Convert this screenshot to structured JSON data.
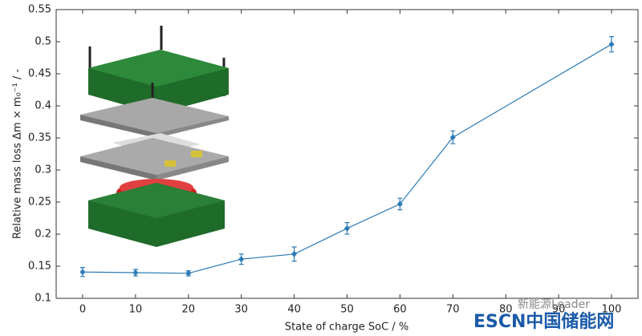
{
  "chart_data": {
    "type": "errorbar-line",
    "x_label": "State of charge SoC / %",
    "y_label": "Relative mass loss Δm × m₀⁻¹ / -",
    "x": [
      0,
      10,
      20,
      30,
      40,
      50,
      60,
      70,
      100
    ],
    "series": [
      {
        "color": "#2c7bb6",
        "values": [
          0.141,
          0.14,
          0.139,
          0.161,
          0.169,
          0.209,
          0.247,
          0.351,
          0.496
        ],
        "errors": [
          0.007,
          0.005,
          0.004,
          0.008,
          0.011,
          0.009,
          0.009,
          0.01,
          0.012
        ]
      }
    ],
    "xlim": [
      -5,
      105
    ],
    "ylim": [
      0.1,
      0.55
    ],
    "xticks": [
      0,
      10,
      20,
      30,
      40,
      50,
      60,
      70,
      80,
      90,
      100
    ],
    "yticks": [
      0.1,
      0.15,
      0.2,
      0.25,
      0.3,
      0.35,
      0.4,
      0.45,
      0.5,
      0.55
    ],
    "watermarks": [
      "新能源Leader",
      "ESCN中国储能网"
    ]
  }
}
